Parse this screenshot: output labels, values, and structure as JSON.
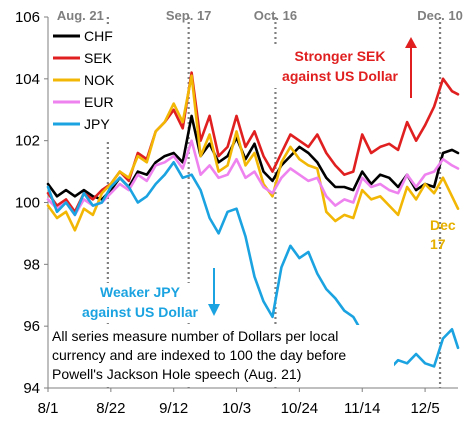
{
  "chart_data": {
    "type": "line",
    "title": "",
    "xlabel": "",
    "ylabel": "",
    "ylim": [
      94,
      106
    ],
    "yticks": [
      94,
      96,
      98,
      100,
      102,
      104,
      106
    ],
    "xtick_labels": [
      "8/1",
      "8/22",
      "9/12",
      "10/3",
      "10/24",
      "11/14",
      "12/5"
    ],
    "x_start": "2022-08-01",
    "x_end": "2022-12-16",
    "grid": false,
    "legend_position": "top-left",
    "vertical_markers": [
      {
        "date": "2022-08-21",
        "label": "Aug. 21"
      },
      {
        "date": "2022-09-17",
        "label": "Sep. 17"
      },
      {
        "date": "2022-10-16",
        "label": "Oct. 16"
      },
      {
        "date": "2022-12-10",
        "label": "Dec. 10"
      }
    ],
    "series": [
      {
        "name": "CHF",
        "color": "#000000",
        "points": [
          [
            "2022-08-01",
            100.6
          ],
          [
            "2022-08-04",
            100.2
          ],
          [
            "2022-08-07",
            100.4
          ],
          [
            "2022-08-10",
            100.2
          ],
          [
            "2022-08-13",
            100.4
          ],
          [
            "2022-08-16",
            100.2
          ],
          [
            "2022-08-19",
            100.1
          ],
          [
            "2022-08-22",
            100.4
          ],
          [
            "2022-08-25",
            100.8
          ],
          [
            "2022-08-28",
            100.5
          ],
          [
            "2022-08-31",
            101.0
          ],
          [
            "2022-09-03",
            100.9
          ],
          [
            "2022-09-06",
            101.3
          ],
          [
            "2022-09-09",
            101.5
          ],
          [
            "2022-09-12",
            101.6
          ],
          [
            "2022-09-15",
            101.3
          ],
          [
            "2022-09-18",
            102.8
          ],
          [
            "2022-09-21",
            101.5
          ],
          [
            "2022-09-24",
            101.9
          ],
          [
            "2022-09-27",
            101.3
          ],
          [
            "2022-09-30",
            101.5
          ],
          [
            "2022-10-03",
            102.1
          ],
          [
            "2022-10-06",
            101.4
          ],
          [
            "2022-10-09",
            101.9
          ],
          [
            "2022-10-12",
            101.0
          ],
          [
            "2022-10-15",
            100.7
          ],
          [
            "2022-10-18",
            101.2
          ],
          [
            "2022-10-21",
            101.5
          ],
          [
            "2022-10-24",
            101.8
          ],
          [
            "2022-10-27",
            101.6
          ],
          [
            "2022-10-30",
            101.3
          ],
          [
            "2022-11-02",
            100.8
          ],
          [
            "2022-11-05",
            100.5
          ],
          [
            "2022-11-08",
            100.5
          ],
          [
            "2022-11-11",
            100.4
          ],
          [
            "2022-11-14",
            101.0
          ],
          [
            "2022-11-17",
            100.6
          ],
          [
            "2022-11-20",
            100.9
          ],
          [
            "2022-11-23",
            100.8
          ],
          [
            "2022-11-26",
            100.5
          ],
          [
            "2022-11-29",
            100.9
          ],
          [
            "2022-12-02",
            100.4
          ],
          [
            "2022-12-05",
            100.6
          ],
          [
            "2022-12-08",
            100.5
          ],
          [
            "2022-12-11",
            101.6
          ],
          [
            "2022-12-14",
            101.7
          ],
          [
            "2022-12-16",
            101.6
          ]
        ]
      },
      {
        "name": "SEK",
        "color": "#e02020",
        "points": [
          [
            "2022-08-01",
            100.3
          ],
          [
            "2022-08-04",
            99.9
          ],
          [
            "2022-08-07",
            100.1
          ],
          [
            "2022-08-10",
            99.7
          ],
          [
            "2022-08-13",
            100.3
          ],
          [
            "2022-08-16",
            100.1
          ],
          [
            "2022-08-19",
            100.4
          ],
          [
            "2022-08-22",
            100.6
          ],
          [
            "2022-08-25",
            101.0
          ],
          [
            "2022-08-28",
            100.7
          ],
          [
            "2022-08-31",
            101.6
          ],
          [
            "2022-09-03",
            101.4
          ],
          [
            "2022-09-06",
            102.3
          ],
          [
            "2022-09-09",
            102.6
          ],
          [
            "2022-09-12",
            103.0
          ],
          [
            "2022-09-15",
            102.4
          ],
          [
            "2022-09-18",
            104.2
          ],
          [
            "2022-09-21",
            102.0
          ],
          [
            "2022-09-24",
            102.8
          ],
          [
            "2022-09-27",
            101.5
          ],
          [
            "2022-09-30",
            101.8
          ],
          [
            "2022-10-03",
            102.8
          ],
          [
            "2022-10-06",
            101.8
          ],
          [
            "2022-10-09",
            102.3
          ],
          [
            "2022-10-12",
            101.5
          ],
          [
            "2022-10-15",
            101.0
          ],
          [
            "2022-10-18",
            101.6
          ],
          [
            "2022-10-21",
            102.2
          ],
          [
            "2022-10-24",
            102.0
          ],
          [
            "2022-10-27",
            101.8
          ],
          [
            "2022-10-30",
            102.2
          ],
          [
            "2022-11-02",
            101.6
          ],
          [
            "2022-11-05",
            101.2
          ],
          [
            "2022-11-08",
            100.9
          ],
          [
            "2022-11-11",
            101.0
          ],
          [
            "2022-11-14",
            102.2
          ],
          [
            "2022-11-17",
            101.6
          ],
          [
            "2022-11-20",
            101.8
          ],
          [
            "2022-11-23",
            101.9
          ],
          [
            "2022-11-26",
            101.7
          ],
          [
            "2022-11-29",
            102.6
          ],
          [
            "2022-12-02",
            102.0
          ],
          [
            "2022-12-05",
            102.5
          ],
          [
            "2022-12-08",
            103.1
          ],
          [
            "2022-12-11",
            104.0
          ],
          [
            "2022-12-14",
            103.6
          ],
          [
            "2022-12-16",
            103.5
          ]
        ]
      },
      {
        "name": "NOK",
        "color": "#f2b705",
        "points": [
          [
            "2022-08-01",
            99.9
          ],
          [
            "2022-08-04",
            99.5
          ],
          [
            "2022-08-07",
            99.7
          ],
          [
            "2022-08-10",
            99.1
          ],
          [
            "2022-08-13",
            99.8
          ],
          [
            "2022-08-16",
            99.6
          ],
          [
            "2022-08-19",
            100.3
          ],
          [
            "2022-08-22",
            100.6
          ],
          [
            "2022-08-25",
            101.0
          ],
          [
            "2022-08-28",
            100.8
          ],
          [
            "2022-08-31",
            101.5
          ],
          [
            "2022-09-03",
            101.3
          ],
          [
            "2022-09-06",
            102.3
          ],
          [
            "2022-09-09",
            102.6
          ],
          [
            "2022-09-12",
            103.2
          ],
          [
            "2022-09-15",
            102.6
          ],
          [
            "2022-09-18",
            104.1
          ],
          [
            "2022-09-21",
            101.5
          ],
          [
            "2022-09-24",
            102.2
          ],
          [
            "2022-09-27",
            101.0
          ],
          [
            "2022-09-30",
            101.2
          ],
          [
            "2022-10-03",
            102.3
          ],
          [
            "2022-10-06",
            101.2
          ],
          [
            "2022-10-09",
            101.6
          ],
          [
            "2022-10-12",
            100.6
          ],
          [
            "2022-10-15",
            100.2
          ],
          [
            "2022-10-18",
            101.3
          ],
          [
            "2022-10-21",
            101.8
          ],
          [
            "2022-10-24",
            101.4
          ],
          [
            "2022-10-27",
            101.2
          ],
          [
            "2022-10-30",
            101.1
          ],
          [
            "2022-11-02",
            99.7
          ],
          [
            "2022-11-05",
            99.4
          ],
          [
            "2022-11-08",
            99.6
          ],
          [
            "2022-11-11",
            99.5
          ],
          [
            "2022-11-14",
            100.4
          ],
          [
            "2022-11-17",
            100.1
          ],
          [
            "2022-11-20",
            100.2
          ],
          [
            "2022-11-23",
            99.9
          ],
          [
            "2022-11-26",
            99.6
          ],
          [
            "2022-11-29",
            100.5
          ],
          [
            "2022-12-02",
            100.1
          ],
          [
            "2022-12-05",
            100.6
          ],
          [
            "2022-12-08",
            100.3
          ],
          [
            "2022-12-11",
            100.8
          ],
          [
            "2022-12-14",
            100.2
          ],
          [
            "2022-12-16",
            99.8
          ]
        ]
      },
      {
        "name": "EUR",
        "color": "#ee82ee",
        "points": [
          [
            "2022-08-01",
            100.1
          ],
          [
            "2022-08-04",
            99.8
          ],
          [
            "2022-08-07",
            100.0
          ],
          [
            "2022-08-10",
            99.6
          ],
          [
            "2022-08-13",
            100.1
          ],
          [
            "2022-08-16",
            99.9
          ],
          [
            "2022-08-19",
            100.0
          ],
          [
            "2022-08-22",
            100.3
          ],
          [
            "2022-08-25",
            100.6
          ],
          [
            "2022-08-28",
            100.4
          ],
          [
            "2022-08-31",
            100.9
          ],
          [
            "2022-09-03",
            100.7
          ],
          [
            "2022-09-06",
            101.2
          ],
          [
            "2022-09-09",
            101.3
          ],
          [
            "2022-09-12",
            101.5
          ],
          [
            "2022-09-15",
            101.1
          ],
          [
            "2022-09-18",
            102.0
          ],
          [
            "2022-09-21",
            100.9
          ],
          [
            "2022-09-24",
            101.2
          ],
          [
            "2022-09-27",
            100.8
          ],
          [
            "2022-09-30",
            100.9
          ],
          [
            "2022-10-03",
            101.4
          ],
          [
            "2022-10-06",
            100.8
          ],
          [
            "2022-10-09",
            101.0
          ],
          [
            "2022-10-12",
            100.5
          ],
          [
            "2022-10-15",
            100.3
          ],
          [
            "2022-10-18",
            100.8
          ],
          [
            "2022-10-21",
            101.1
          ],
          [
            "2022-10-24",
            100.9
          ],
          [
            "2022-10-27",
            100.7
          ],
          [
            "2022-10-30",
            100.8
          ],
          [
            "2022-11-02",
            100.2
          ],
          [
            "2022-11-05",
            99.9
          ],
          [
            "2022-11-08",
            100.1
          ],
          [
            "2022-11-11",
            100.0
          ],
          [
            "2022-11-14",
            100.8
          ],
          [
            "2022-11-17",
            100.5
          ],
          [
            "2022-11-20",
            100.6
          ],
          [
            "2022-11-23",
            100.4
          ],
          [
            "2022-11-26",
            100.3
          ],
          [
            "2022-11-29",
            100.9
          ],
          [
            "2022-12-02",
            100.5
          ],
          [
            "2022-12-05",
            100.9
          ],
          [
            "2022-12-08",
            101.0
          ],
          [
            "2022-12-11",
            101.4
          ],
          [
            "2022-12-14",
            101.2
          ],
          [
            "2022-12-16",
            101.1
          ]
        ]
      },
      {
        "name": "JPY",
        "color": "#1aa3e0",
        "points": [
          [
            "2022-08-01",
            100.5
          ],
          [
            "2022-08-04",
            99.7
          ],
          [
            "2022-08-07",
            100.0
          ],
          [
            "2022-08-10",
            99.6
          ],
          [
            "2022-08-13",
            100.3
          ],
          [
            "2022-08-16",
            99.9
          ],
          [
            "2022-08-19",
            100.0
          ],
          [
            "2022-08-22",
            100.5
          ],
          [
            "2022-08-25",
            100.8
          ],
          [
            "2022-08-28",
            100.5
          ],
          [
            "2022-08-31",
            100.0
          ],
          [
            "2022-09-03",
            100.2
          ],
          [
            "2022-09-06",
            100.6
          ],
          [
            "2022-09-09",
            100.9
          ],
          [
            "2022-09-12",
            101.3
          ],
          [
            "2022-09-15",
            100.8
          ],
          [
            "2022-09-18",
            100.9
          ],
          [
            "2022-09-21",
            100.4
          ],
          [
            "2022-09-24",
            99.5
          ],
          [
            "2022-09-27",
            99.0
          ],
          [
            "2022-09-30",
            99.7
          ],
          [
            "2022-10-03",
            99.8
          ],
          [
            "2022-10-06",
            98.9
          ],
          [
            "2022-10-09",
            97.6
          ],
          [
            "2022-10-12",
            96.8
          ],
          [
            "2022-10-15",
            96.3
          ],
          [
            "2022-10-18",
            97.9
          ],
          [
            "2022-10-21",
            98.6
          ],
          [
            "2022-10-24",
            98.2
          ],
          [
            "2022-10-27",
            98.4
          ],
          [
            "2022-10-30",
            97.7
          ],
          [
            "2022-11-02",
            97.2
          ],
          [
            "2022-11-05",
            96.9
          ],
          [
            "2022-11-08",
            96.5
          ],
          [
            "2022-11-11",
            96.3
          ],
          [
            "2022-11-14",
            95.8
          ],
          [
            "2022-11-17",
            95.2
          ],
          [
            "2022-11-20",
            95.5
          ],
          [
            "2022-11-23",
            94.6
          ],
          [
            "2022-11-26",
            94.9
          ],
          [
            "2022-11-29",
            94.8
          ],
          [
            "2022-12-02",
            95.1
          ],
          [
            "2022-12-05",
            94.8
          ],
          [
            "2022-12-08",
            94.7
          ],
          [
            "2022-12-11",
            95.6
          ],
          [
            "2022-12-14",
            95.9
          ],
          [
            "2022-12-16",
            95.3
          ]
        ]
      }
    ],
    "annotations": [
      {
        "lines": [
          "Stronger SEK",
          "against US Dollar"
        ],
        "color": "#e02020"
      },
      {
        "lines": [
          "Weaker JPY",
          "against US Dollar"
        ],
        "color": "#1aa3e0"
      },
      {
        "lines": [
          "Dec",
          "17"
        ],
        "color": "#e6b000"
      },
      {
        "lines": [
          "All series measure number of Dollars per local",
          "currency and are indexed to 100 the day before",
          "Powell's Jackson Hole speech (Aug. 21)"
        ],
        "color": "#000000"
      }
    ]
  }
}
